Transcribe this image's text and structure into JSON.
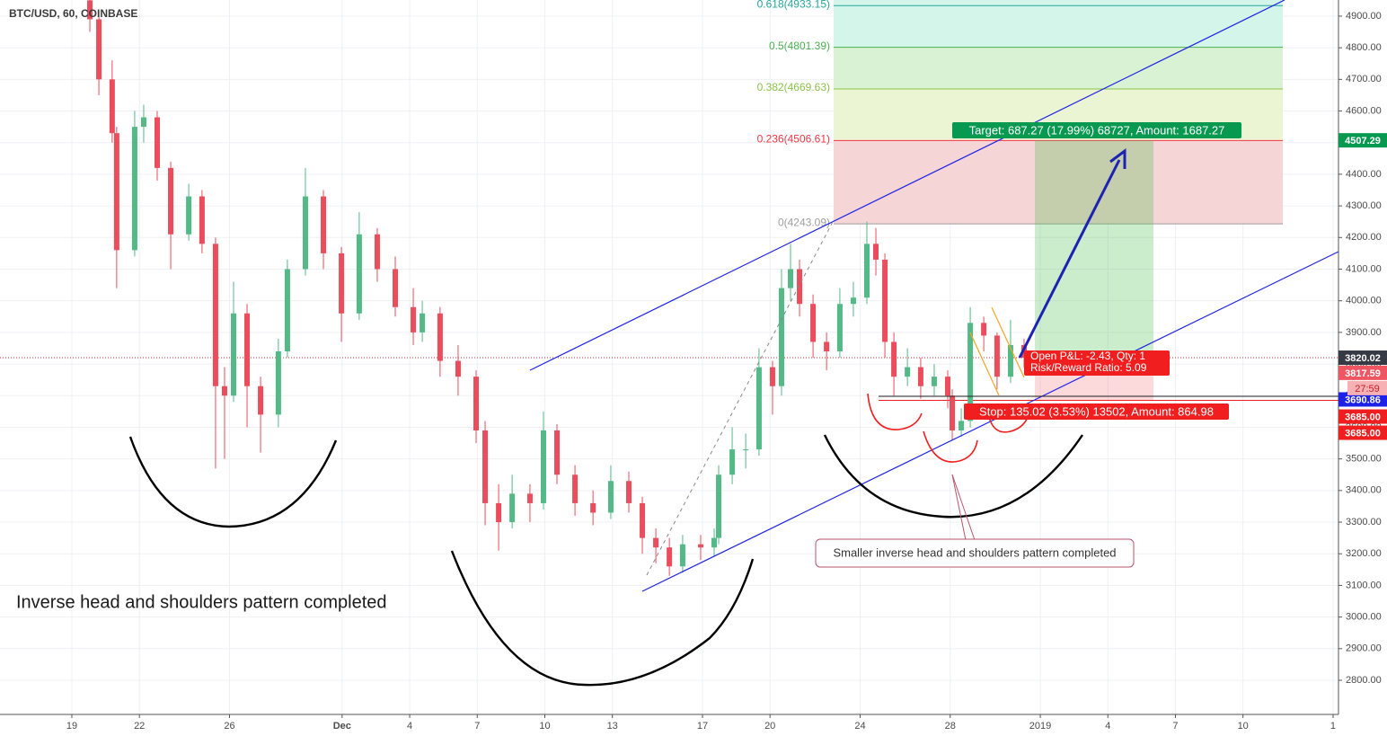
{
  "chart_data": {
    "type": "candlestick",
    "title": "BTC/USD, 60, COINBASE",
    "x": [
      19.8,
      20.2,
      20.79,
      20.99,
      21.79,
      22.19,
      22.79,
      23.39,
      24.19,
      24.78,
      25.38,
      25.78,
      26.18,
      26.78,
      27.38,
      28.17,
      28.57,
      29.37,
      30.17,
      30.97,
      31.76,
      32.56,
      33.36,
      34.16,
      34.56,
      35.35,
      36.15,
      36.95,
      37.35,
      37.95,
      38.55,
      39.34,
      39.94,
      40.54,
      41.34,
      42.14,
      42.93,
      43.73,
      44.33,
      44.93,
      45.53,
      46.12,
      46.92,
      47.52,
      47.72,
      48.32,
      48.92,
      49.51,
      50.11,
      50.51,
      50.91,
      51.31,
      51.91,
      52.51,
      53.1,
      53.7,
      54.3,
      54.7,
      55.1,
      55.5,
      56.1,
      56.69,
      57.29,
      57.89,
      58.09,
      58.49,
      58.89,
      59.49,
      60.08,
      60.68,
      61.28
    ],
    "open": [
      4950,
      4890,
      4700,
      4530,
      4160,
      4550,
      4580,
      4420,
      4210,
      4330,
      4180,
      3730,
      3700,
      3960,
      3730,
      3640,
      3840,
      4100,
      4330,
      4150,
      3960,
      4210,
      4100,
      3980,
      3900,
      3960,
      3810,
      3760,
      3590,
      3360,
      3300,
      3390,
      3360,
      3590,
      3450,
      3360,
      3330,
      3430,
      3360,
      3250,
      3220,
      3160,
      3230,
      3220,
      3250,
      3450,
      3530,
      3530,
      3790,
      3730,
      4040,
      4100,
      3990,
      3870,
      3840,
      3990,
      4010,
      4180,
      4130,
      3870,
      3760,
      3790,
      3730,
      3760,
      3700,
      3590,
      3620,
      3930,
      3890,
      3760,
      3860
    ],
    "high": [
      4980,
      4900,
      4760,
      4550,
      4600,
      4620,
      4600,
      4440,
      4370,
      4350,
      4200,
      3790,
      4060,
      3990,
      3760,
      3880,
      4130,
      4420,
      4350,
      4170,
      4280,
      4230,
      4140,
      4040,
      4000,
      3980,
      3860,
      3780,
      3620,
      3420,
      3450,
      3420,
      3650,
      3610,
      3480,
      3400,
      3480,
      3460,
      3380,
      3280,
      3250,
      3260,
      3260,
      3280,
      3480,
      3600,
      3580,
      3850,
      3810,
      4100,
      4180,
      4130,
      4020,
      3900,
      4040,
      4060,
      4250,
      4230,
      4150,
      3900,
      3850,
      3820,
      3800,
      3780,
      3720,
      3660,
      3980,
      3950,
      3900,
      3940,
      3880
    ],
    "low": [
      4850,
      4650,
      4500,
      4040,
      4140,
      4500,
      4380,
      4100,
      4190,
      4150,
      3470,
      3500,
      3680,
      3600,
      3520,
      3600,
      3820,
      4080,
      4100,
      3870,
      3940,
      4060,
      3950,
      3860,
      3870,
      3760,
      3700,
      3550,
      3290,
      3210,
      3280,
      3300,
      3340,
      3420,
      3320,
      3290,
      3310,
      3330,
      3200,
      3170,
      3130,
      3140,
      3180,
      3190,
      3230,
      3420,
      3470,
      3510,
      3640,
      3700,
      4000,
      3950,
      3820,
      3780,
      3820,
      3950,
      3990,
      4080,
      3820,
      3700,
      3730,
      3690,
      3700,
      3660,
      3560,
      3570,
      3600,
      3840,
      3720,
      3740,
      3790
    ],
    "close": [
      4890,
      4700,
      4530,
      4160,
      4550,
      4580,
      4420,
      4210,
      4330,
      4180,
      3730,
      3700,
      3960,
      3730,
      3640,
      3840,
      4100,
      4330,
      4150,
      3960,
      4210,
      4100,
      3980,
      3900,
      3960,
      3810,
      3760,
      3590,
      3360,
      3300,
      3390,
      3360,
      3590,
      3450,
      3360,
      3330,
      3430,
      3360,
      3250,
      3220,
      3160,
      3230,
      3220,
      3250,
      3450,
      3530,
      3530,
      3790,
      3730,
      4040,
      4100,
      3990,
      3870,
      3840,
      3990,
      4010,
      4180,
      4130,
      3870,
      3760,
      3790,
      3730,
      3760,
      3700,
      3590,
      3620,
      3930,
      3890,
      3760,
      3860,
      3820
    ],
    "up_color": "#53b987",
    "down_color": "#eb4d5c",
    "xlim": [
      15.81,
      75.24
    ],
    "xticks": [
      19,
      22,
      26,
      {
        "value": 31,
        "label": "Dec"
      },
      {
        "value": 34,
        "label": "4"
      },
      {
        "value": 37,
        "label": "7"
      },
      {
        "value": 40,
        "label": "10"
      },
      {
        "value": 43,
        "label": "13"
      },
      {
        "value": 47,
        "label": "17"
      },
      {
        "value": 50,
        "label": "20"
      },
      {
        "value": 54,
        "label": "24"
      },
      {
        "value": 58,
        "label": "28"
      },
      {
        "value": 62,
        "label": "2019"
      },
      {
        "value": 65,
        "label": "4"
      },
      {
        "value": 68,
        "label": "7"
      },
      {
        "value": 71,
        "label": "10"
      },
      {
        "value": 75,
        "label": "1"
      }
    ],
    "ylim": [
      2692,
      4951
    ],
    "yticks": [
      {
        "value": 2800,
        "label": "2800.00"
      },
      {
        "value": 2900,
        "label": "2900.00"
      },
      {
        "value": 3000,
        "label": "3000.00"
      },
      {
        "value": 3100,
        "label": "3100.00"
      },
      {
        "value": 3200,
        "label": "3200.00"
      },
      {
        "value": 3300,
        "label": "3300.00"
      },
      {
        "value": 3400,
        "label": "3400.00"
      },
      {
        "value": 3500,
        "label": "3500.00"
      },
      {
        "value": 3600,
        "label": "3600.00"
      },
      {
        "value": 3700,
        "label": "3700.00"
      },
      {
        "value": 3800,
        "label": "3800.00"
      },
      {
        "value": 3900,
        "label": "3900.00"
      },
      {
        "value": 4000,
        "label": "4000.00"
      },
      {
        "value": 4100,
        "label": "4100.00"
      },
      {
        "value": 4200,
        "label": "4200.00"
      },
      {
        "value": 4300,
        "label": "4300.00"
      },
      {
        "value": 4400,
        "label": "4400.00"
      },
      {
        "value": 4500,
        "label": "4500.00"
      },
      {
        "value": 4600,
        "label": "4600.00"
      },
      {
        "value": 4700,
        "label": "4700.00"
      },
      {
        "value": 4800,
        "label": "4800.00"
      },
      {
        "value": 4900,
        "label": "4900.00"
      }
    ],
    "grid": true,
    "fib_levels": [
      {
        "label": "0.618(4933.15)",
        "value": 4933.15,
        "color": "#26a69a",
        "fill": "#d3f5ea"
      },
      {
        "label": "0.5(4801.39)",
        "value": 4801.39,
        "color": "#4caf50",
        "fill": "#d9f2d3"
      },
      {
        "label": "0.382(4669.63)",
        "value": 4669.63,
        "color": "#8bc34a",
        "fill": "#ecf5d3"
      },
      {
        "label": "0.236(4506.61)",
        "value": 4506.61,
        "color": "#f23645",
        "fill": "#f5d5d5"
      },
      {
        "label": "0(4243.09)",
        "value": 4243.09,
        "color": "#9e9e9e"
      }
    ],
    "price_labels": [
      {
        "label": "4507.29",
        "value": 4507.29,
        "color": "#089950"
      },
      {
        "label": "3820.02",
        "value": 3820.02,
        "color": "#363a45"
      },
      {
        "label": "3817.59",
        "value": 3817.59,
        "color": "#f05661"
      },
      {
        "label": "3690.86",
        "value": 3690.86,
        "color": "#1e22e6"
      },
      {
        "label": "3685.00",
        "value": 3685.0,
        "color": "#f01e1e"
      },
      {
        "label": "3685.00",
        "value": 3685.0,
        "color": "#f01e1e"
      }
    ],
    "countdown": "27:59",
    "target_label": "Target: 687.27 (17.99%) 68727, Amount: 1687.27",
    "stop_label": "Stop: 135.02 (3.53%) 13502, Amount: 864.98",
    "pnl_lines": [
      "Open P&L: -2.43, Qty: 1",
      "Risk/Reward Ratio: 5.09"
    ],
    "annotations": [
      "Inverse head and shoulders pattern completed",
      "Smaller inverse head and shoulders pattern completed"
    ]
  }
}
